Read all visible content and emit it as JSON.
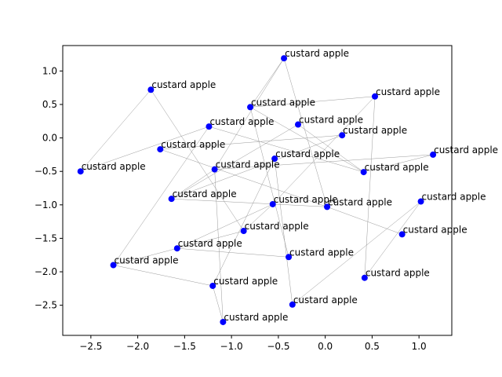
{
  "chart_data": {
    "type": "scatter",
    "title": "",
    "xlabel": "",
    "ylabel": "",
    "xlim": [
      -2.8,
      1.35
    ],
    "ylim": [
      -2.95,
      1.38
    ],
    "xticks": [
      -2.5,
      -2.0,
      -1.5,
      -1.0,
      -0.5,
      0.0,
      0.5,
      1.0
    ],
    "xtick_labels": [
      "−2.5",
      "−2.0",
      "−1.5",
      "−1.0",
      "−0.5",
      "0.0",
      "0.5",
      "1.0"
    ],
    "yticks": [
      1.0,
      0.5,
      0.0,
      -0.5,
      -1.0,
      -1.5,
      -2.0,
      -2.5
    ],
    "ytick_labels": [
      "1.0",
      "0.5",
      "0.0",
      "−0.5",
      "−1.0",
      "−1.5",
      "−2.0",
      "−2.5"
    ],
    "grid": false,
    "point_color": "#0000ff",
    "edge_color": "#999999",
    "points": [
      {
        "label": "custard apple",
        "x": -0.44,
        "y": 1.19
      },
      {
        "label": "custard apple",
        "x": -1.86,
        "y": 0.72
      },
      {
        "label": "custard apple",
        "x": 0.53,
        "y": 0.62
      },
      {
        "label": "custard apple",
        "x": -0.8,
        "y": 0.46
      },
      {
        "label": "custard apple",
        "x": -1.24,
        "y": 0.17
      },
      {
        "label": "custard apple",
        "x": -0.29,
        "y": 0.2
      },
      {
        "label": "custard apple",
        "x": 0.18,
        "y": 0.04
      },
      {
        "label": "custard apple",
        "x": -1.76,
        "y": -0.17
      },
      {
        "label": "custard apple",
        "x": 1.15,
        "y": -0.25
      },
      {
        "label": "custard apple",
        "x": -0.54,
        "y": -0.31
      },
      {
        "label": "custard apple",
        "x": -2.61,
        "y": -0.5
      },
      {
        "label": "custard apple",
        "x": -1.18,
        "y": -0.47
      },
      {
        "label": "custard apple",
        "x": 0.41,
        "y": -0.51
      },
      {
        "label": "custard apple",
        "x": -1.64,
        "y": -0.91
      },
      {
        "label": "custard apple",
        "x": -0.56,
        "y": -0.99
      },
      {
        "label": "custard apple",
        "x": 0.02,
        "y": -1.03
      },
      {
        "label": "custard apple",
        "x": 1.02,
        "y": -0.95
      },
      {
        "label": "custard apple",
        "x": -0.87,
        "y": -1.39
      },
      {
        "label": "custard apple",
        "x": 0.82,
        "y": -1.44
      },
      {
        "label": "custard apple",
        "x": -1.58,
        "y": -1.65
      },
      {
        "label": "custard apple",
        "x": -0.39,
        "y": -1.78
      },
      {
        "label": "custard apple",
        "x": -2.26,
        "y": -1.9
      },
      {
        "label": "custard apple",
        "x": 0.42,
        "y": -2.09
      },
      {
        "label": "custard apple",
        "x": -1.2,
        "y": -2.21
      },
      {
        "label": "custard apple",
        "x": -0.35,
        "y": -2.49
      },
      {
        "label": "custard apple",
        "x": -1.09,
        "y": -2.75
      }
    ],
    "edges": [
      [
        0,
        3
      ],
      [
        0,
        11
      ],
      [
        0,
        15
      ],
      [
        3,
        2
      ],
      [
        3,
        12
      ],
      [
        3,
        20
      ],
      [
        2,
        22
      ],
      [
        1,
        10
      ],
      [
        1,
        17
      ],
      [
        4,
        10
      ],
      [
        4,
        21
      ],
      [
        4,
        12
      ],
      [
        5,
        13
      ],
      [
        5,
        12
      ],
      [
        7,
        6
      ],
      [
        7,
        15
      ],
      [
        6,
        13
      ],
      [
        9,
        23
      ],
      [
        9,
        24
      ],
      [
        8,
        12
      ],
      [
        8,
        11
      ],
      [
        11,
        25
      ],
      [
        11,
        13
      ],
      [
        13,
        15
      ],
      [
        14,
        17
      ],
      [
        14,
        19
      ],
      [
        15,
        18
      ],
      [
        16,
        24
      ],
      [
        17,
        21
      ],
      [
        19,
        20
      ],
      [
        21,
        23
      ],
      [
        23,
        25
      ],
      [
        22,
        16
      ],
      [
        14,
        2
      ]
    ]
  }
}
